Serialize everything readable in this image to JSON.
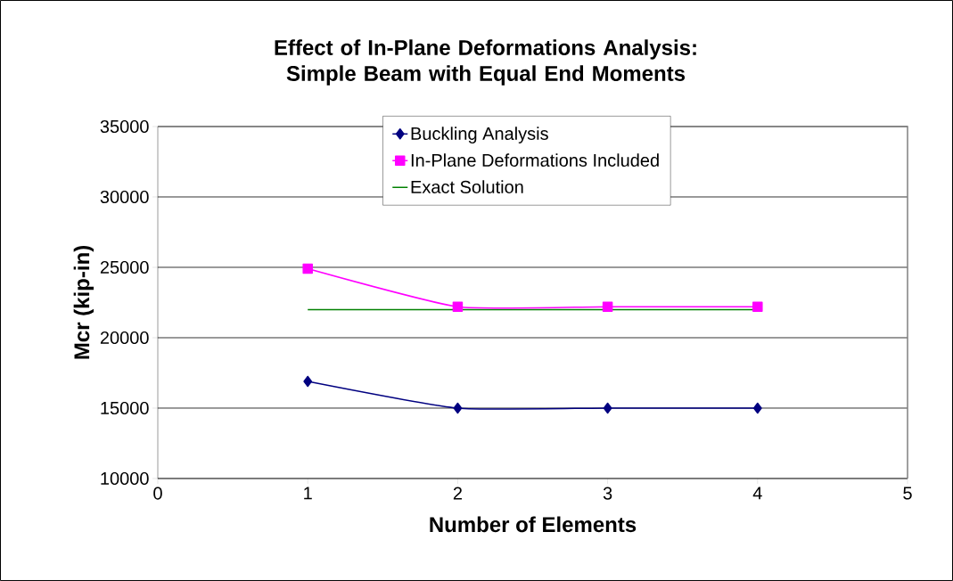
{
  "chart_data": {
    "type": "line",
    "title": "Effect of In-Plane Deformations Analysis: Simple Beam with Equal End Moments",
    "xlabel": "Number of Elements",
    "ylabel": "Mcr (kip-in)",
    "x": [
      1,
      2,
      3,
      4
    ],
    "series": [
      {
        "name": "Buckling Analysis",
        "color": "#000080",
        "marker": "diamond",
        "values": [
          16900,
          15000,
          15000,
          15000
        ]
      },
      {
        "name": "In-Plane Deformations Included",
        "color": "#ff00ff",
        "marker": "square",
        "values": [
          24900,
          22200,
          22200,
          22200
        ]
      },
      {
        "name": "Exact Solution",
        "color": "#008000",
        "marker": "none",
        "values": [
          22000,
          22000,
          22000,
          22000
        ]
      }
    ],
    "xlim": [
      0,
      5
    ],
    "xticks": [
      0,
      1,
      2,
      3,
      4,
      5
    ],
    "ylim": [
      10000,
      35000
    ],
    "yticks": [
      10000,
      15000,
      20000,
      25000,
      30000,
      35000
    ],
    "grid": "y",
    "legend": "top right"
  }
}
